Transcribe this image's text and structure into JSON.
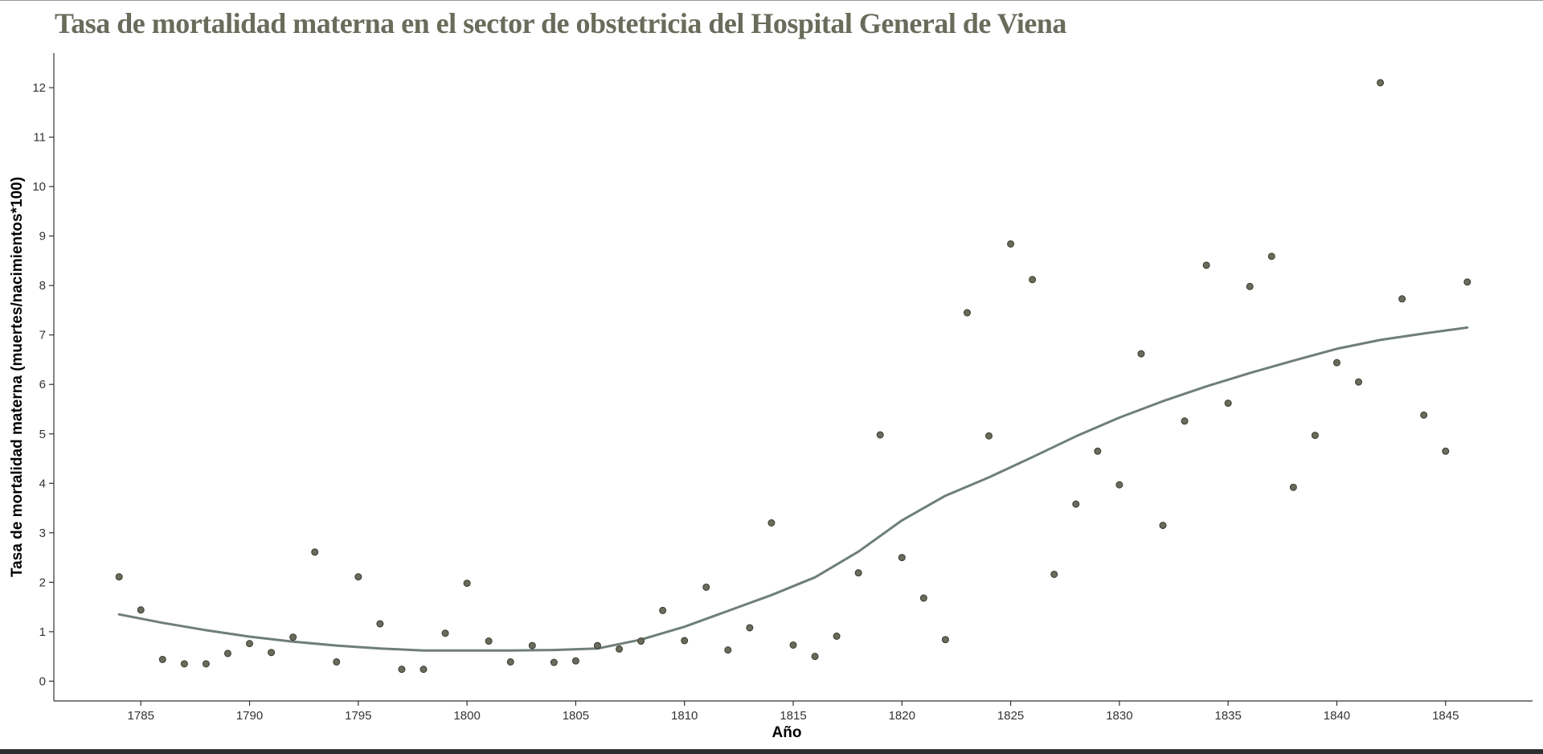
{
  "colors": {
    "title": "#6b6b5c",
    "point_fill": "#6b6b5c",
    "point_stroke": "#3a3a30",
    "smooth_line": "#6e7f78",
    "axis": "#333333",
    "tick_label": "#333333",
    "axis_title": "#000000"
  },
  "chart_data": {
    "type": "scatter",
    "title": "Tasa de mortalidad materna en el sector de obstetricia del Hospital General de Viena",
    "xlabel": "Año",
    "ylabel": "Tasa de mortalidad materna (muertes/nacimientos*100)",
    "xlim": [
      1781,
      1849
    ],
    "ylim": [
      -0.4,
      12.7
    ],
    "xticks": [
      1785,
      1790,
      1795,
      1800,
      1805,
      1810,
      1815,
      1820,
      1825,
      1830,
      1835,
      1840,
      1845
    ],
    "yticks": [
      0,
      1,
      2,
      3,
      4,
      5,
      6,
      7,
      8,
      9,
      10,
      11,
      12
    ],
    "grid": false,
    "points": {
      "x": [
        1784,
        1785,
        1786,
        1787,
        1788,
        1789,
        1790,
        1791,
        1792,
        1793,
        1794,
        1795,
        1796,
        1797,
        1798,
        1799,
        1800,
        1801,
        1802,
        1803,
        1804,
        1805,
        1806,
        1807,
        1808,
        1809,
        1810,
        1811,
        1812,
        1813,
        1814,
        1815,
        1816,
        1817,
        1818,
        1819,
        1820,
        1821,
        1822,
        1823,
        1824,
        1825,
        1826,
        1827,
        1828,
        1829,
        1830,
        1831,
        1832,
        1833,
        1834,
        1835,
        1836,
        1837,
        1838,
        1839,
        1840,
        1841,
        1842,
        1843,
        1844,
        1845,
        1846
      ],
      "y": [
        2.11,
        1.44,
        0.44,
        0.35,
        0.35,
        0.56,
        0.76,
        0.58,
        0.89,
        2.61,
        0.39,
        2.11,
        1.16,
        0.24,
        0.24,
        0.97,
        1.98,
        0.81,
        0.39,
        0.72,
        0.38,
        0.41,
        0.72,
        0.65,
        0.81,
        1.43,
        0.82,
        1.9,
        0.63,
        1.08,
        3.2,
        0.73,
        0.5,
        0.91,
        2.19,
        4.98,
        2.5,
        1.68,
        0.84,
        7.45,
        4.96,
        8.84,
        8.12,
        2.16,
        3.58,
        4.65,
        3.97,
        6.62,
        3.15,
        5.26,
        8.41,
        5.62,
        7.98,
        8.59,
        3.92,
        4.97,
        6.44,
        6.05,
        12.1,
        7.73,
        5.38,
        4.65,
        8.07
      ]
    },
    "smooth": {
      "x": [
        1784,
        1786,
        1788,
        1790,
        1792,
        1794,
        1796,
        1798,
        1800,
        1802,
        1804,
        1806,
        1808,
        1810,
        1812,
        1814,
        1816,
        1818,
        1820,
        1822,
        1824,
        1826,
        1828,
        1830,
        1832,
        1834,
        1836,
        1838,
        1840,
        1842,
        1844,
        1846
      ],
      "y": [
        1.35,
        1.18,
        1.03,
        0.9,
        0.8,
        0.72,
        0.66,
        0.62,
        0.62,
        0.62,
        0.63,
        0.66,
        0.84,
        1.1,
        1.42,
        1.74,
        2.1,
        2.62,
        3.25,
        3.75,
        4.12,
        4.53,
        4.95,
        5.33,
        5.66,
        5.96,
        6.23,
        6.48,
        6.72,
        6.9,
        7.03,
        7.15
      ]
    }
  }
}
